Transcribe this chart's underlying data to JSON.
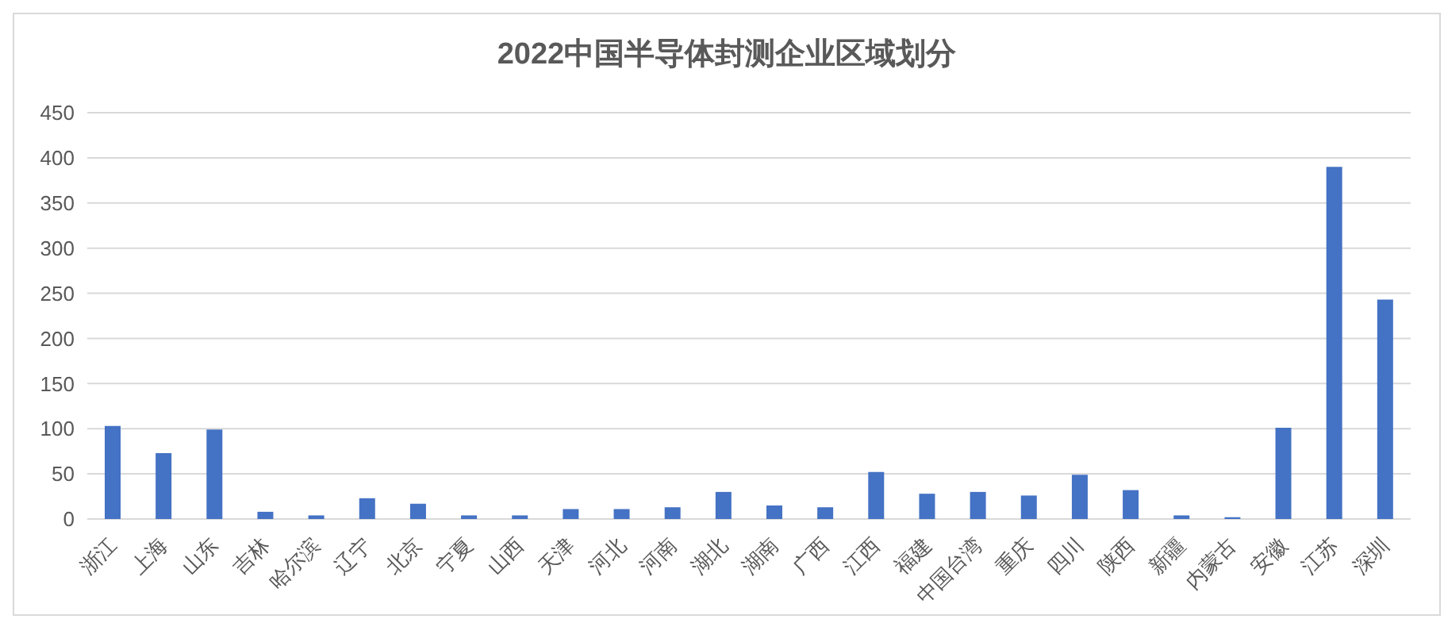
{
  "chart_data": {
    "type": "bar",
    "title": "2022中国半导体封测企业区域划分",
    "categories": [
      "浙江",
      "上海",
      "山东",
      "吉林",
      "哈尔滨",
      "辽宁",
      "北京",
      "宁夏",
      "山西",
      "天津",
      "河北",
      "河南",
      "湖北",
      "湖南",
      "广西",
      "江西",
      "福建",
      "中国台湾",
      "重庆",
      "四川",
      "陕西",
      "新疆",
      "内蒙古",
      "安徽",
      "江苏",
      "深圳"
    ],
    "values": [
      103,
      73,
      99,
      8,
      4,
      23,
      17,
      4,
      4,
      11,
      11,
      13,
      30,
      15,
      13,
      52,
      28,
      30,
      26,
      49,
      32,
      4,
      2,
      101,
      390,
      243
    ],
    "color": "#4472c4",
    "ylim": [
      0,
      450
    ],
    "yticks": [
      0,
      50,
      100,
      150,
      200,
      250,
      300,
      350,
      400,
      450
    ],
    "grid": "y"
  }
}
